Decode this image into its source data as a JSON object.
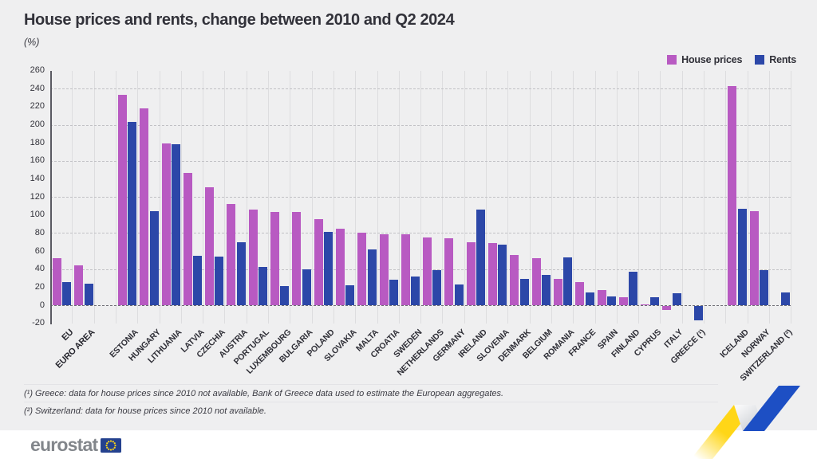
{
  "header": {
    "title": "House prices and rents, change between 2010 and Q2 2024",
    "subtitle": "(%)"
  },
  "legend": {
    "house_prices_label": "House prices",
    "rents_label": "Rents"
  },
  "colors": {
    "house_prices": "#b85ac2",
    "rents": "#2c47a8",
    "background": "#efeff0",
    "ribbon_blue": "#1d4fc4",
    "ribbon_yellow": "#ffd617",
    "eu_flag_blue": "#24418e"
  },
  "chart_data": {
    "type": "bar",
    "title": "House prices and rents, change between 2010 and Q2 2024",
    "ylabel": "(%)",
    "ylim": [
      -20,
      260
    ],
    "ytick_step": 20,
    "grid_values": [
      40,
      80,
      120,
      160,
      200,
      240
    ],
    "grid": "horizontal-dashed with vertical column separators",
    "legend_position": "top-right",
    "categories": [
      "EU",
      "EURO AREA",
      "ESTONIA",
      "HUNGARY",
      "LITHUANIA",
      "LATVIA",
      "CZECHIA",
      "AUSTRIA",
      "PORTUGAL",
      "LUXEMBOURG",
      "BULGARIA",
      "POLAND",
      "SLOVAKIA",
      "MALTA",
      "CROATIA",
      "SWEDEN",
      "NETHERLANDS",
      "GERMANY",
      "IRELAND",
      "SLOVENIA",
      "DENMARK",
      "BELGIUM",
      "ROMANIA",
      "FRANCE",
      "SPAIN",
      "FINLAND",
      "CYPRUS",
      "ITALY",
      "GREECE (¹)",
      "ICELAND",
      "NORWAY",
      "SWITZERLAND (²)"
    ],
    "bold_categories": [
      "EU",
      "EURO AREA"
    ],
    "gap_after_indices": [
      1,
      28
    ],
    "series": [
      {
        "name": "House prices",
        "color": "#b85ac2",
        "values": [
          52,
          44,
          233,
          218,
          179,
          147,
          131,
          112,
          106,
          103,
          103,
          95,
          85,
          80,
          79,
          79,
          75,
          74,
          70,
          69,
          56,
          52,
          29,
          26,
          17,
          9,
          1,
          -4,
          null,
          243,
          104,
          null
        ]
      },
      {
        "name": "Rents",
        "color": "#2c47a8",
        "values": [
          26,
          24,
          203,
          104,
          178,
          55,
          54,
          70,
          42,
          21,
          40,
          81,
          22,
          62,
          28,
          32,
          39,
          23,
          106,
          67,
          29,
          34,
          53,
          14,
          10,
          37,
          9,
          13,
          -16,
          107,
          39,
          14
        ]
      }
    ]
  },
  "footnotes": [
    "(¹) Greece: data for house prices since 2010 not available, Bank of Greece data used to estimate the European aggregates.",
    "(²) Switzerland: data for house prices since 2010 not available."
  ],
  "footer": {
    "logo_text": "eurostat"
  }
}
